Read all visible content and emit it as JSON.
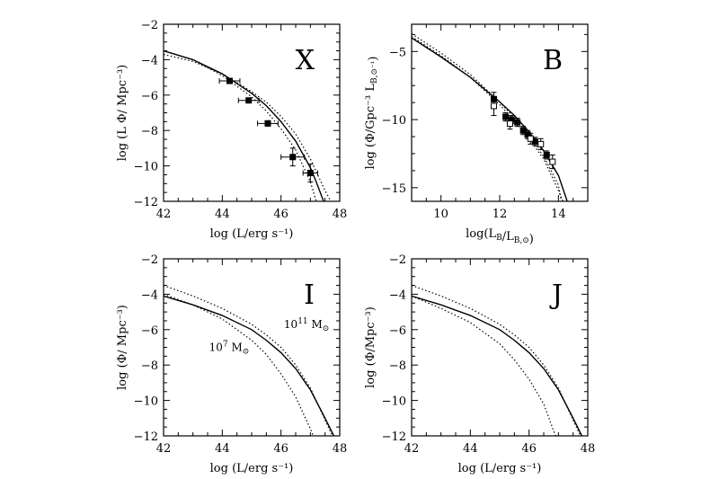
{
  "chart_data": [
    {
      "panel": "X",
      "type": "line",
      "panel_label": "X",
      "xlabel": "log (L/erg s⁻¹)",
      "ylabel": "log (L Φ/ Mpc⁻³)",
      "xlim": [
        42,
        48
      ],
      "ylim": [
        -12,
        -2
      ],
      "xticks": [
        42,
        44,
        46,
        48
      ],
      "yticks": [
        -12,
        -10,
        -8,
        -6,
        -4,
        -2
      ],
      "series": [
        {
          "style": "solid",
          "x": [
            42,
            43,
            44,
            45,
            45.5,
            46,
            46.5,
            47,
            47.2,
            47.45
          ],
          "y": [
            -3.5,
            -4.0,
            -4.8,
            -5.9,
            -6.6,
            -7.5,
            -8.6,
            -10.1,
            -10.9,
            -12
          ]
        },
        {
          "style": "dotted",
          "x": [
            42,
            43,
            44,
            45,
            45.5,
            46,
            46.5,
            47,
            47.5,
            47.7
          ],
          "y": [
            -3.7,
            -4.1,
            -4.8,
            -5.8,
            -6.4,
            -7.2,
            -8.2,
            -9.6,
            -11.4,
            -12
          ]
        },
        {
          "style": "dotted",
          "x": [
            42,
            43,
            44,
            45,
            45.5,
            46,
            46.5,
            47,
            47.2
          ],
          "y": [
            -3.5,
            -4.0,
            -4.9,
            -6.1,
            -6.9,
            -7.9,
            -9.1,
            -10.9,
            -12
          ]
        }
      ],
      "points": [
        {
          "x": 44.25,
          "y": -5.2,
          "xerr": 0.35,
          "yerr": 0.1,
          "marker": "filled-square"
        },
        {
          "x": 44.9,
          "y": -6.3,
          "xerr": 0.35,
          "yerr": 0.1,
          "marker": "filled-square"
        },
        {
          "x": 45.55,
          "y": -7.6,
          "xerr": 0.35,
          "yerr": 0.15,
          "marker": "filled-square"
        },
        {
          "x": 46.4,
          "y": -9.5,
          "xerr": 0.4,
          "yerr": 0.5,
          "marker": "filled-square"
        },
        {
          "x": 47.0,
          "y": -10.4,
          "xerr": 0.25,
          "yerr": 0.5,
          "marker": "filled-square"
        }
      ]
    },
    {
      "panel": "B",
      "type": "line",
      "panel_label": "B",
      "xlabel": "log(L_B/L_B,⊙)",
      "ylabel": "log (Φ/Gpc⁻³ L_B,⊙⁻¹)",
      "xlim": [
        9,
        15
      ],
      "ylim": [
        -16,
        -3
      ],
      "xticks": [
        10,
        12,
        14
      ],
      "yticks": [
        -15,
        -10,
        -5
      ],
      "series": [
        {
          "style": "solid",
          "x": [
            9,
            10,
            11,
            12,
            12.5,
            13,
            13.5,
            14,
            14.3
          ],
          "y": [
            -4.0,
            -5.4,
            -6.9,
            -8.7,
            -9.7,
            -10.9,
            -12.3,
            -14.1,
            -16
          ]
        },
        {
          "style": "dotted",
          "x": [
            9,
            10,
            11,
            12,
            12.5,
            13,
            13.5,
            14,
            14.1
          ],
          "y": [
            -3.7,
            -5.1,
            -6.7,
            -8.7,
            -9.9,
            -11.2,
            -12.7,
            -14.8,
            -16
          ]
        },
        {
          "style": "dotted",
          "x": [
            9,
            10,
            11,
            12,
            12.5,
            13,
            13.5,
            14,
            14.15
          ],
          "y": [
            -3.9,
            -5.3,
            -6.9,
            -8.9,
            -10.1,
            -11.4,
            -12.9,
            -15.2,
            -16
          ]
        }
      ],
      "points": [
        {
          "x": 11.8,
          "y": -8.5,
          "yerr": 0.5,
          "marker": "filled-square"
        },
        {
          "x": 11.8,
          "y": -9.0,
          "yerr": 0.7,
          "marker": "open-square"
        },
        {
          "x": 12.2,
          "y": -9.8,
          "yerr": 0.3,
          "marker": "filled-square"
        },
        {
          "x": 12.4,
          "y": -10.0,
          "yerr": 0.3,
          "marker": "filled-square"
        },
        {
          "x": 12.6,
          "y": -10.2,
          "yerr": 0.3,
          "marker": "filled-square"
        },
        {
          "x": 12.35,
          "y": -10.3,
          "yerr": 0.4,
          "marker": "open-square"
        },
        {
          "x": 12.8,
          "y": -10.8,
          "yerr": 0.3,
          "marker": "filled-square"
        },
        {
          "x": 12.95,
          "y": -11.1,
          "yerr": 0.3,
          "marker": "filled-square"
        },
        {
          "x": 13.2,
          "y": -11.6,
          "yerr": 0.3,
          "marker": "filled-square"
        },
        {
          "x": 13.05,
          "y": -11.4,
          "yerr": 0.4,
          "marker": "open-square"
        },
        {
          "x": 13.4,
          "y": -11.8,
          "yerr": 0.4,
          "marker": "open-square"
        },
        {
          "x": 13.6,
          "y": -12.6,
          "yerr": 0.3,
          "marker": "filled-square"
        },
        {
          "x": 13.8,
          "y": -13.1,
          "yerr": 0.5,
          "marker": "open-square"
        }
      ]
    },
    {
      "panel": "I",
      "type": "line",
      "panel_label": "I",
      "xlabel": "log (L/erg s⁻¹)",
      "ylabel": "log (Φ/ Mpc⁻³)",
      "xlim": [
        42,
        48
      ],
      "ylim": [
        -12,
        -2
      ],
      "xticks": [
        42,
        44,
        46,
        48
      ],
      "yticks": [
        -12,
        -10,
        -8,
        -6,
        -4,
        -2
      ],
      "annotations": [
        {
          "text": "10",
          "sup": "11",
          "suffix": " M",
          "sub": "⊙",
          "x": 46.1,
          "y": -5.9
        },
        {
          "text": "10",
          "sup": "7",
          "suffix": " M",
          "sub": "⊙",
          "x": 43.55,
          "y": -7.2
        }
      ],
      "series": [
        {
          "style": "solid",
          "x": [
            42,
            43,
            44,
            45,
            45.5,
            46,
            46.5,
            47,
            47.5,
            47.8
          ],
          "y": [
            -4.1,
            -4.6,
            -5.2,
            -6.0,
            -6.6,
            -7.3,
            -8.2,
            -9.4,
            -11.0,
            -12
          ]
        },
        {
          "style": "dotted",
          "x": [
            42,
            43,
            44,
            45,
            45.5,
            46,
            46.5,
            47,
            47.5,
            47.75
          ],
          "y": [
            -3.5,
            -4.1,
            -4.8,
            -5.7,
            -6.3,
            -7.0,
            -8.0,
            -9.3,
            -11.1,
            -12
          ]
        },
        {
          "style": "dotted",
          "x": [
            42,
            43,
            44,
            45,
            45.5,
            46,
            46.5,
            47,
            47.1
          ],
          "y": [
            -4.0,
            -4.6,
            -5.4,
            -6.6,
            -7.4,
            -8.5,
            -9.8,
            -11.6,
            -12
          ]
        }
      ]
    },
    {
      "panel": "J",
      "type": "line",
      "panel_label": "J",
      "xlabel": "log (L/erg s⁻¹)",
      "ylabel": "log (Φ/Mpc⁻³)",
      "xlim": [
        42,
        48
      ],
      "ylim": [
        -12,
        -2
      ],
      "xticks": [
        42,
        44,
        46,
        48
      ],
      "yticks": [
        -12,
        -10,
        -8,
        -6,
        -4,
        -2
      ],
      "series": [
        {
          "style": "solid",
          "x": [
            42,
            43,
            44,
            45,
            45.5,
            46,
            46.5,
            47,
            47.5,
            47.8
          ],
          "y": [
            -4.1,
            -4.6,
            -5.2,
            -6.0,
            -6.6,
            -7.3,
            -8.2,
            -9.4,
            -11.0,
            -12
          ]
        },
        {
          "style": "dotted",
          "x": [
            42,
            43,
            44,
            45,
            45.5,
            46,
            46.5,
            47,
            47.5,
            47.75
          ],
          "y": [
            -3.5,
            -4.1,
            -4.8,
            -5.7,
            -6.3,
            -7.0,
            -8.0,
            -9.3,
            -11.1,
            -12
          ]
        },
        {
          "style": "dotted",
          "x": [
            42,
            43,
            44,
            45,
            45.5,
            46,
            46.5,
            46.9
          ],
          "y": [
            -4.1,
            -4.8,
            -5.6,
            -6.8,
            -7.7,
            -8.8,
            -10.2,
            -12
          ]
        }
      ]
    }
  ]
}
